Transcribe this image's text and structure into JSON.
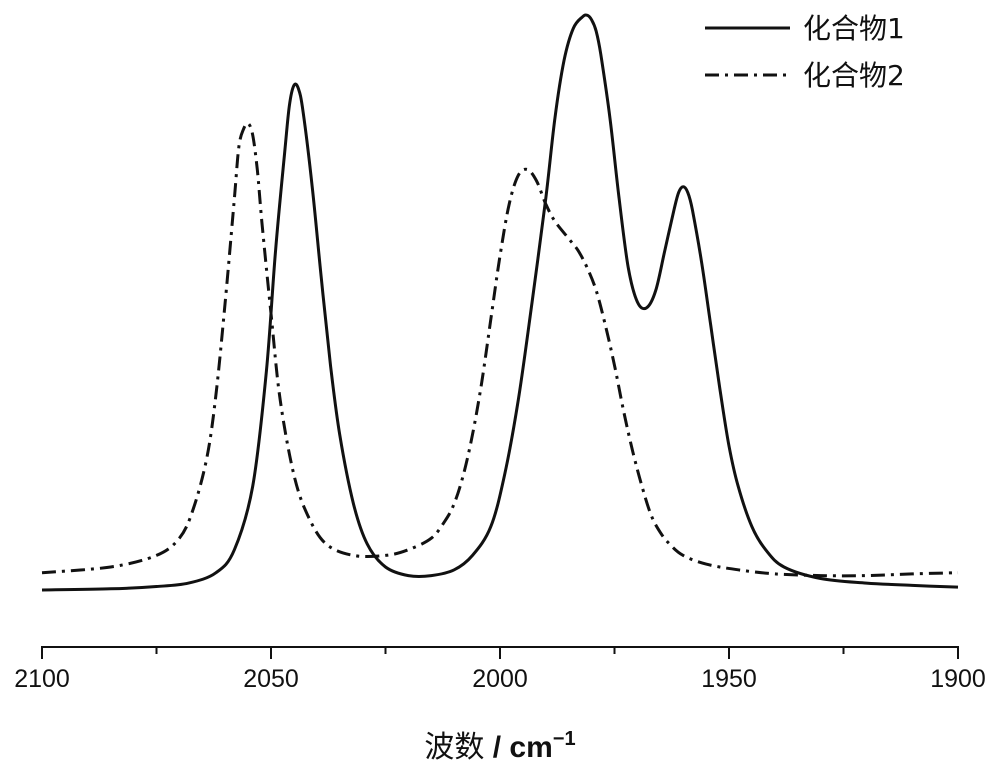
{
  "chart_data": {
    "type": "line",
    "xlabel_main": "波数",
    "xlabel_unit": " / cm",
    "xlabel_sup": "−1",
    "xlim": [
      2100,
      1900
    ],
    "x_ticks": [
      2100,
      2050,
      2000,
      1950,
      1900
    ],
    "x_tick_labels": [
      "2100",
      "2050",
      "2000",
      "1950",
      "1900"
    ],
    "grid": false,
    "legend_position": "top-right",
    "series": [
      {
        "name": "化合物1",
        "line_style": "solid",
        "x": [
          2100,
          2085,
          2075,
          2068,
          2062,
          2058,
          2054,
          2051,
          2049,
          2047,
          2046,
          2045,
          2044,
          2043,
          2041,
          2039,
          2037,
          2035,
          2032,
          2029,
          2025,
          2020,
          2015,
          2010,
          2006,
          2002,
          1999,
          1996,
          1993,
          1990,
          1988,
          1986,
          1984,
          1982,
          1981,
          1980,
          1979,
          1978,
          1976,
          1974,
          1972,
          1970,
          1968,
          1966,
          1964,
          1962,
          1961,
          1960,
          1959,
          1958,
          1956,
          1954,
          1952,
          1950,
          1948,
          1945,
          1942,
          1938,
          1930,
          1920,
          1910,
          1900
        ],
        "y": [
          0.0,
          0.002,
          0.006,
          0.012,
          0.03,
          0.07,
          0.18,
          0.38,
          0.59,
          0.76,
          0.84,
          0.876,
          0.87,
          0.83,
          0.7,
          0.54,
          0.39,
          0.27,
          0.15,
          0.08,
          0.04,
          0.025,
          0.025,
          0.035,
          0.06,
          0.11,
          0.2,
          0.33,
          0.5,
          0.68,
          0.82,
          0.92,
          0.975,
          0.995,
          0.998,
          0.99,
          0.97,
          0.93,
          0.82,
          0.68,
          0.56,
          0.5,
          0.49,
          0.52,
          0.59,
          0.66,
          0.69,
          0.7,
          0.69,
          0.66,
          0.57,
          0.46,
          0.35,
          0.25,
          0.18,
          0.11,
          0.07,
          0.04,
          0.02,
          0.012,
          0.008,
          0.005
        ]
      },
      {
        "name": "化合物2",
        "line_style": "dash-dot",
        "x": [
          2100,
          2085,
          2075,
          2070,
          2067,
          2064,
          2062,
          2060,
          2058,
          2057,
          2056,
          2055,
          2054,
          2053,
          2052,
          2050,
          2048,
          2045,
          2042,
          2038,
          2032,
          2025,
          2020,
          2015,
          2012,
          2010,
          2008,
          2006,
          2004,
          2002,
          2000,
          1998,
          1996,
          1994,
          1992,
          1990,
          1988,
          1985,
          1983,
          1981,
          1979,
          1977,
          1975,
          1973,
          1971,
          1969,
          1967,
          1965,
          1963,
          1960,
          1955,
          1948,
          1940,
          1930,
          1920,
          1910,
          1900
        ],
        "y": [
          0.03,
          0.04,
          0.06,
          0.09,
          0.14,
          0.23,
          0.34,
          0.5,
          0.68,
          0.77,
          0.8,
          0.81,
          0.79,
          0.73,
          0.64,
          0.48,
          0.33,
          0.2,
          0.13,
          0.08,
          0.06,
          0.06,
          0.07,
          0.09,
          0.12,
          0.15,
          0.2,
          0.27,
          0.36,
          0.47,
          0.58,
          0.67,
          0.72,
          0.73,
          0.71,
          0.67,
          0.64,
          0.61,
          0.59,
          0.56,
          0.52,
          0.46,
          0.39,
          0.31,
          0.24,
          0.18,
          0.13,
          0.1,
          0.08,
          0.06,
          0.045,
          0.035,
          0.028,
          0.025,
          0.025,
          0.028,
          0.03
        ]
      }
    ]
  }
}
